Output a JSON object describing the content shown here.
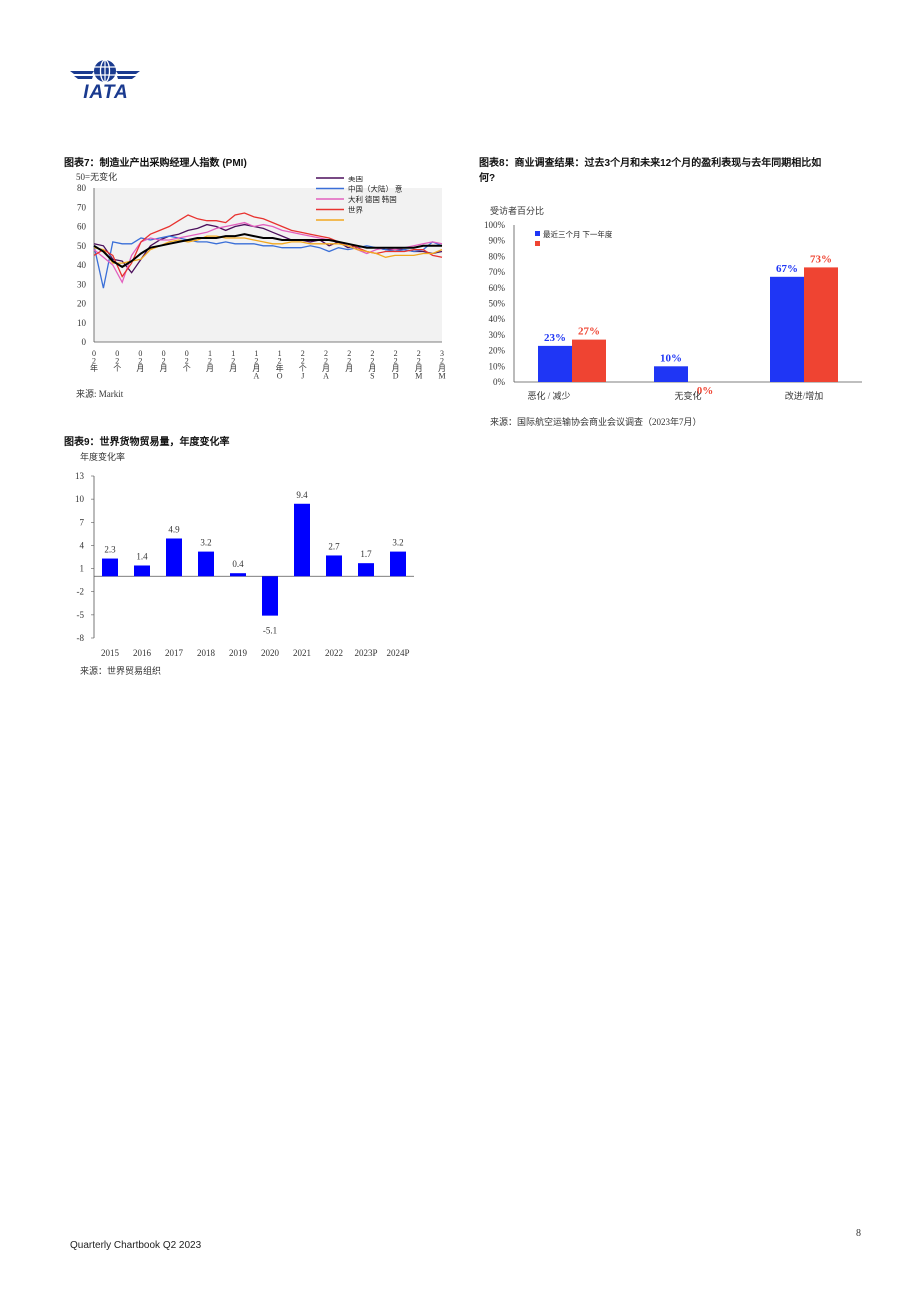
{
  "logo": {
    "text": "IATA",
    "color": "#1a3a8f"
  },
  "chart7": {
    "title": "图表7：制造业产出采购经理人指数 (PMI)",
    "note": "50=无变化",
    "source": "来源: Markit",
    "legend": [
      "美国",
      "中国（大陆） 意",
      "大利 德国 韩国",
      "世界",
      ""
    ],
    "colors": [
      "#4b0f5c",
      "#3a6fd8",
      "#e25fbe",
      "#e8322f",
      "#f2a81f",
      "#000000"
    ],
    "x_tick_rows": [
      [
        "0",
        "0",
        "0",
        "0",
        "0",
        "1",
        "1",
        "1",
        "1",
        "2",
        "2",
        "2",
        "2",
        "2",
        "2",
        "3"
      ],
      [
        "2",
        "2",
        "2",
        "2",
        "2",
        "2",
        "2",
        "2",
        "2",
        "2",
        "2",
        "2",
        "2",
        "2",
        "2",
        "2"
      ],
      [
        "年",
        "个",
        "月",
        "月",
        "个",
        "月",
        "月",
        "月",
        "年",
        "个",
        "月",
        "月",
        "月",
        "月",
        "月",
        "月"
      ],
      [
        "",
        "",
        "",
        "",
        "",
        "",
        "",
        "A",
        "O",
        "J",
        "A",
        "",
        "S",
        "D",
        "M",
        "M"
      ]
    ],
    "chart_data": {
      "type": "line",
      "ylim": [
        0,
        80
      ],
      "yticks": [
        0,
        10,
        20,
        30,
        40,
        50,
        60,
        70,
        80
      ],
      "series": [
        {
          "name": "美国",
          "values": [
            51,
            50,
            43,
            42,
            36,
            43,
            50,
            53,
            55,
            56,
            58,
            59,
            61,
            60,
            58,
            60,
            61,
            60,
            59,
            57,
            55,
            53,
            53,
            52,
            53,
            50,
            52,
            49,
            50,
            49,
            49,
            48,
            48,
            48,
            47,
            47,
            46,
            47
          ]
        },
        {
          "name": "中国（大陆）",
          "values": [
            50,
            28,
            52,
            51,
            51,
            54,
            53,
            54,
            55,
            54,
            53,
            52,
            52,
            51,
            52,
            51,
            51,
            51,
            50,
            50,
            49,
            49,
            49,
            50,
            49,
            47,
            49,
            48,
            49,
            50,
            49,
            48,
            47,
            48,
            47,
            48,
            52,
            50
          ]
        },
        {
          "name": "意大利",
          "values": [
            48,
            44,
            40,
            31,
            45,
            52,
            54,
            53,
            53,
            54,
            55,
            56,
            57,
            59,
            60,
            61,
            62,
            60,
            61,
            60,
            58,
            57,
            56,
            55,
            54,
            53,
            52,
            50,
            48,
            46,
            48,
            49,
            48,
            49,
            50,
            51,
            52,
            51
          ]
        },
        {
          "name": "德国",
          "values": [
            45,
            48,
            45,
            34,
            41,
            52,
            56,
            58,
            60,
            63,
            66,
            64,
            63,
            63,
            62,
            66,
            67,
            65,
            64,
            62,
            60,
            58,
            57,
            56,
            55,
            54,
            52,
            51,
            49,
            47,
            46,
            47,
            47,
            47,
            48,
            48,
            45,
            44
          ]
        },
        {
          "name": "韩国",
          "values": [
            49,
            48,
            41,
            41,
            42,
            43,
            48,
            50,
            52,
            53,
            52,
            53,
            55,
            55,
            54,
            54,
            54,
            53,
            52,
            51,
            51,
            52,
            52,
            51,
            51,
            51,
            51,
            50,
            48,
            47,
            46,
            44,
            45,
            45,
            45,
            46,
            46,
            48
          ]
        },
        {
          "name": "世界",
          "values": [
            50,
            47,
            42,
            39,
            42,
            46,
            49,
            50,
            51,
            52,
            53,
            54,
            54,
            54,
            55,
            55,
            56,
            55,
            54,
            54,
            53,
            53,
            53,
            53,
            53,
            53,
            52,
            51,
            50,
            49,
            49,
            49,
            49,
            49,
            49,
            50,
            50,
            50
          ]
        }
      ]
    }
  },
  "chart8": {
    "title_line1": "图表8：商业调查结果：过去3个月和未来12个月的盈利表现与去年同期相比如",
    "title_line2": "何?",
    "ylabel": "受访者百分比",
    "source": "来源：国际航空运输协会商业会议调查（2023年7月）",
    "chart_data": {
      "type": "bar",
      "categories": [
        "恶化 / 减少",
        "无变化",
        "改进/增加"
      ],
      "series": [
        {
          "name": "最近三个月",
          "values": [
            23,
            10,
            67
          ],
          "color": "#1f36f5",
          "labels": [
            "23%",
            "10%",
            "67%"
          ]
        },
        {
          "name": "下一年度",
          "values": [
            27,
            0,
            73
          ],
          "color": "#ef4432",
          "labels": [
            "27%",
            "0%",
            "73%"
          ]
        }
      ],
      "ylim": [
        0,
        100
      ],
      "ytick_labels": [
        "0%",
        "10%",
        "20%",
        "30%",
        "40%",
        "50%",
        "60%",
        "70%",
        "80%",
        "90%",
        "100%"
      ],
      "legend_text": "最近三个月 下一年度"
    }
  },
  "chart9": {
    "title": "图表9：世界货物贸易量，年度变化率",
    "ylabel": "年度变化率",
    "source": "来源：世界贸易组织",
    "chart_data": {
      "type": "bar",
      "categories": [
        "2015",
        "2016",
        "2017",
        "2018",
        "2019",
        "2020",
        "2021",
        "2022",
        "2023P",
        "2024P"
      ],
      "values": [
        2.3,
        1.4,
        4.9,
        3.2,
        0.4,
        -5.1,
        9.4,
        2.7,
        1.7,
        3.2
      ],
      "labels": [
        "2.3",
        "1.4",
        "4.9",
        "3.2",
        "0.4",
        "-5.1",
        "9.4",
        "2.7",
        "1.7",
        "3.2"
      ],
      "ylim": [
        -8,
        13
      ],
      "ytick_labels": [
        "13",
        "10",
        "7",
        "4",
        "1",
        "-2",
        "-5",
        "-8"
      ],
      "color": "#0000ff"
    }
  },
  "footer": {
    "left": "Quarterly Chartbook Q2 2023",
    "page": "8"
  }
}
